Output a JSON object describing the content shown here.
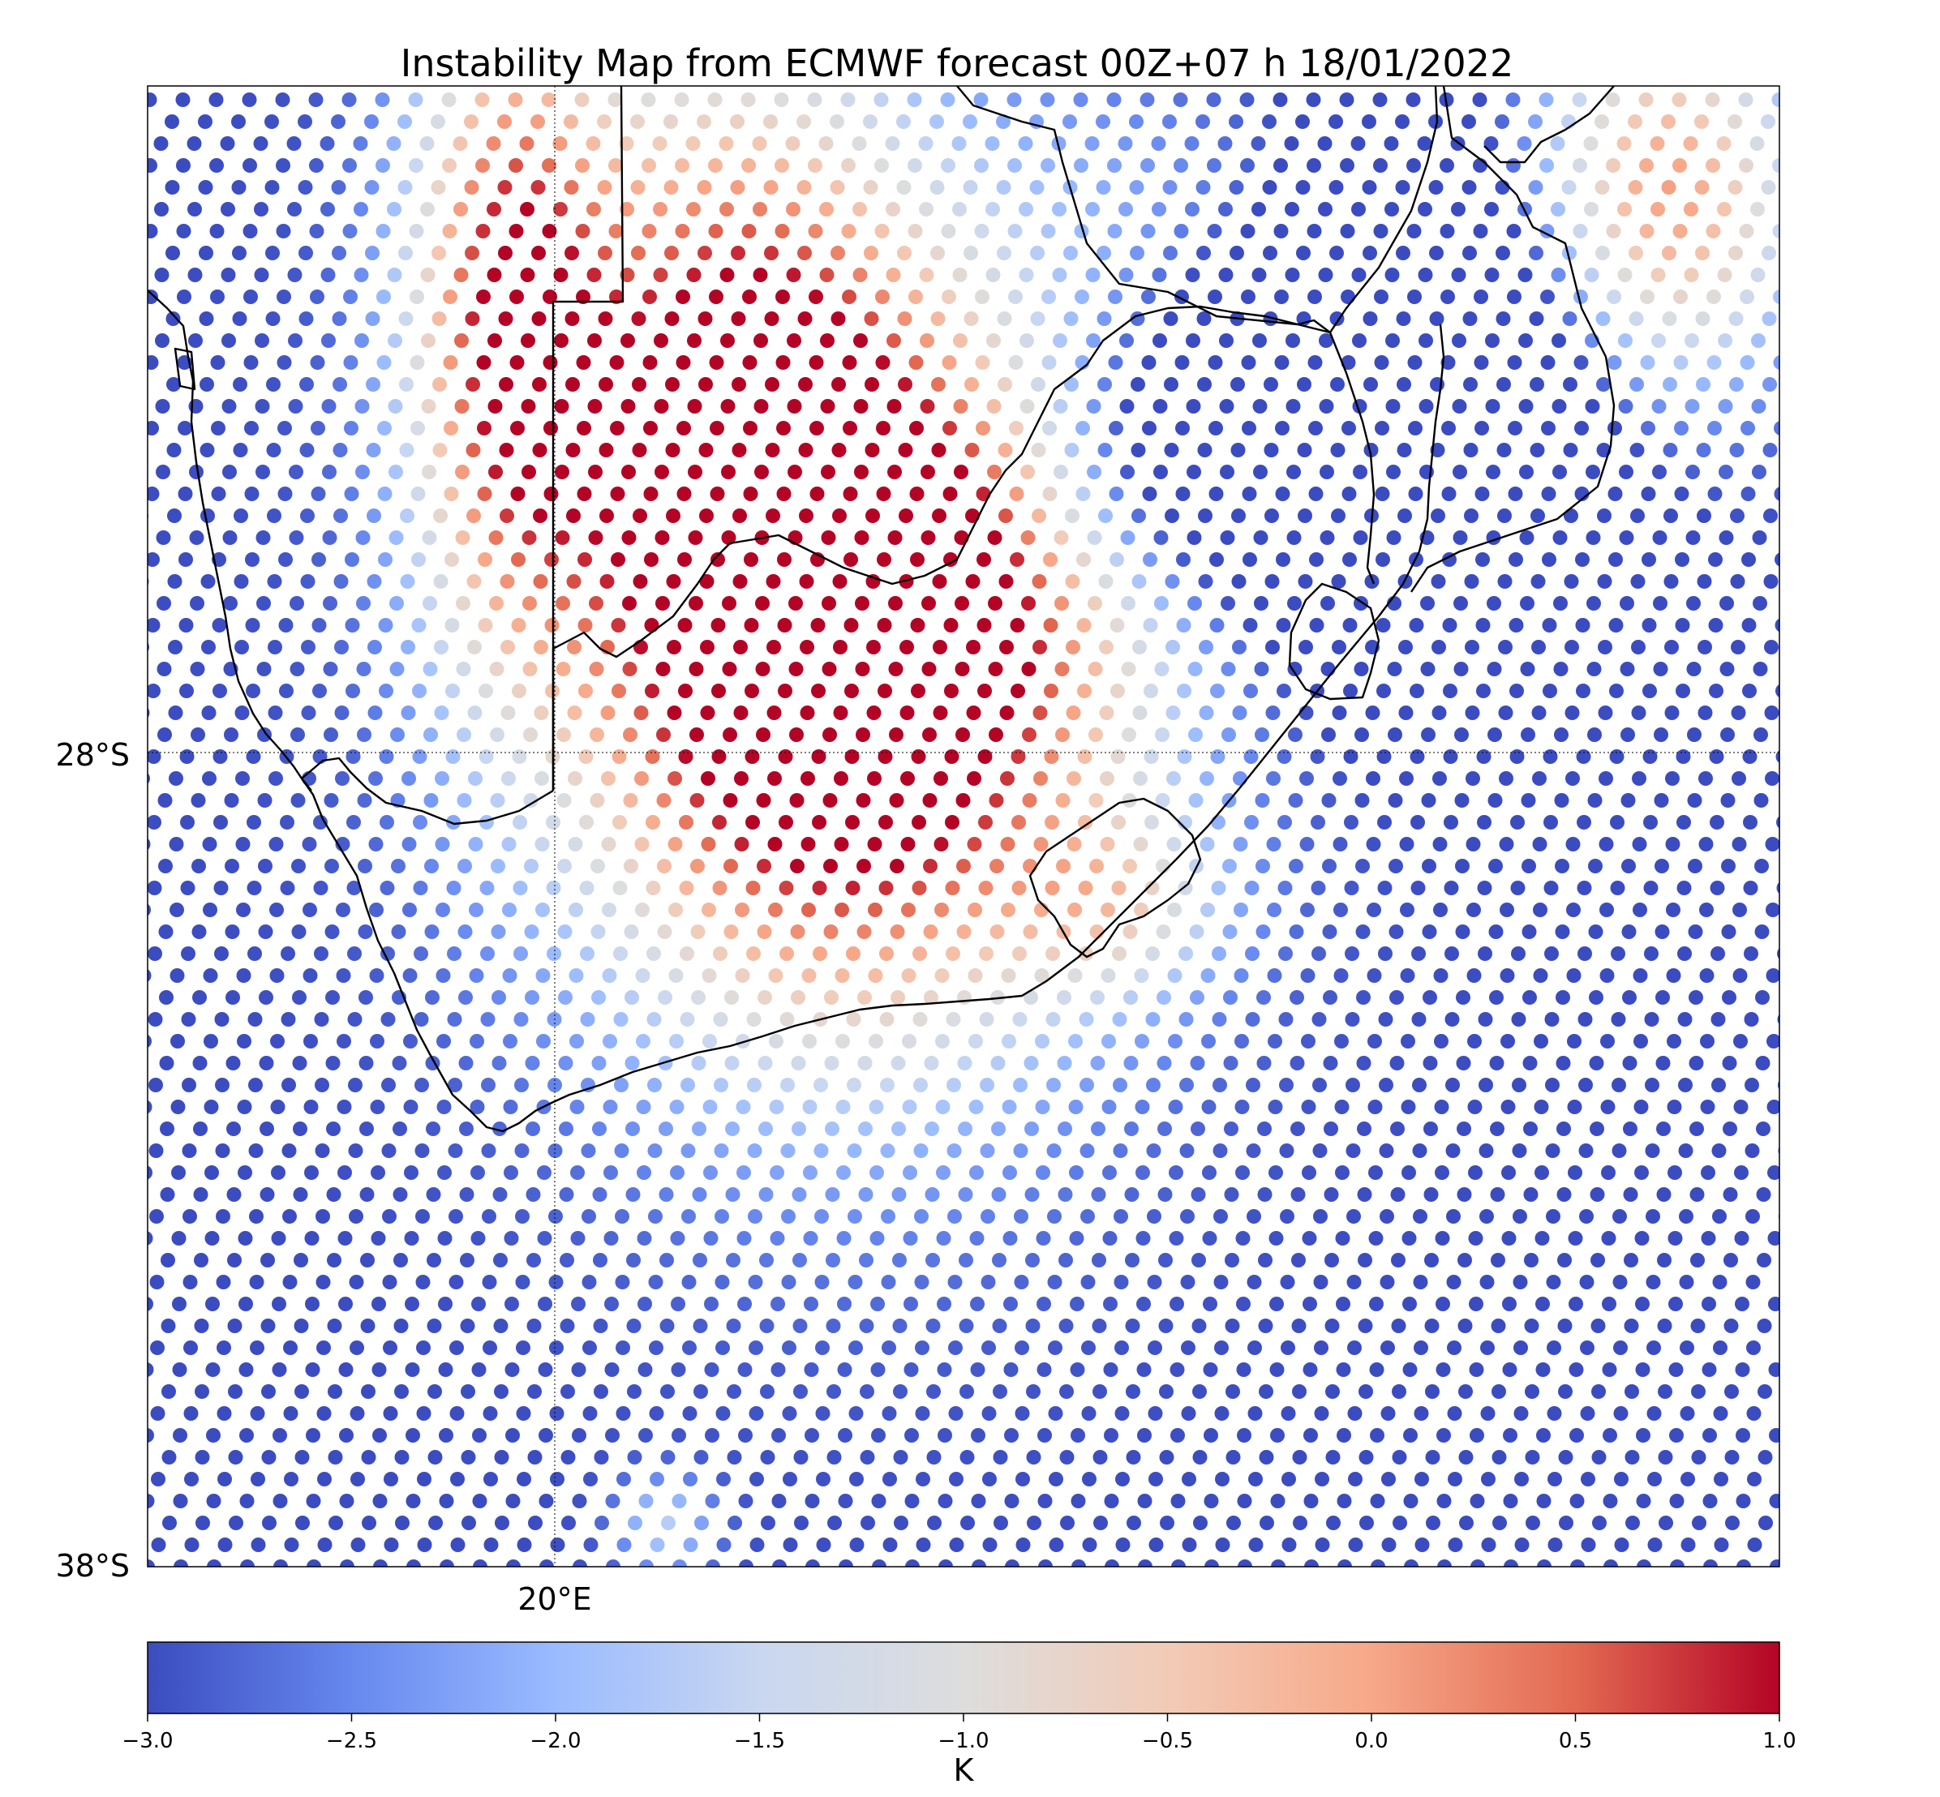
{
  "title": "Instability Map from ECMWF forecast 00Z+07 h 18/01/2022",
  "map": {
    "lat_range": [
      -38,
      -20
    ],
    "lon_range": [
      15,
      35
    ],
    "lat_gridlines": [
      {
        "value": -28,
        "label": "28°S"
      },
      {
        "value": -38,
        "label": "38°S"
      }
    ],
    "lon_gridlines": [
      {
        "value": 20,
        "label": "20°E"
      }
    ],
    "marker": "filled-circle",
    "colors": {
      "coastline": "#000000",
      "frame": "#000000",
      "gridline": "#000000"
    }
  },
  "colorbar": {
    "label": "K",
    "range": [
      -3.0,
      1.0
    ],
    "ticks": [
      "−3.0",
      "−2.5",
      "−2.0",
      "−1.5",
      "−1.0",
      "−0.5",
      "0.0",
      "0.5",
      "1.0"
    ],
    "colormap": "coolwarm",
    "stops": [
      "#3b4cc0",
      "#6788ee",
      "#9abbff",
      "#c9d7f0",
      "#dddddd",
      "#f2cbb7",
      "#f7a889",
      "#e26952",
      "#b40426"
    ]
  }
}
